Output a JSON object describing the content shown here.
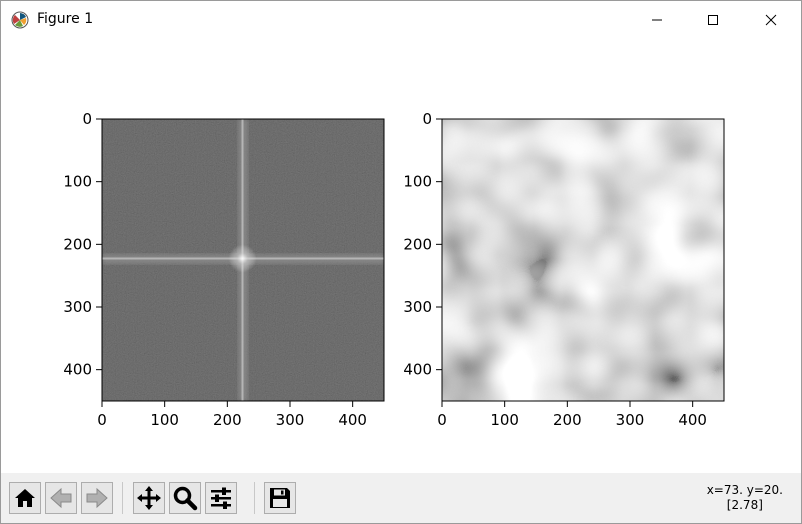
{
  "window": {
    "title": "Figure 1"
  },
  "axes": [
    {
      "image": "2D Fourier magnitude spectrum (log scale, dark gray with bright cross at center)",
      "xticks": [
        "0",
        "100",
        "200",
        "300",
        "400"
      ],
      "yticks": [
        "0",
        "100",
        "200",
        "300",
        "400"
      ],
      "xlim": [
        0,
        450
      ],
      "ylim": [
        450,
        0
      ]
    },
    {
      "image": "smooth low-pass filtered grayscale noise",
      "xticks": [
        "0",
        "100",
        "200",
        "300",
        "400"
      ],
      "yticks": [
        "0",
        "100",
        "200",
        "300",
        "400"
      ],
      "xlim": [
        0,
        450
      ],
      "ylim": [
        450,
        0
      ]
    }
  ],
  "toolbar": {
    "buttons": [
      "home-icon",
      "back-arrow-icon",
      "forward-arrow-icon",
      "pan-move-icon",
      "zoom-magnifier-icon",
      "configure-subplots-icon",
      "save-floppy-icon"
    ]
  },
  "status": {
    "coords": "x=73. y=20.",
    "value": "[2.78]"
  }
}
